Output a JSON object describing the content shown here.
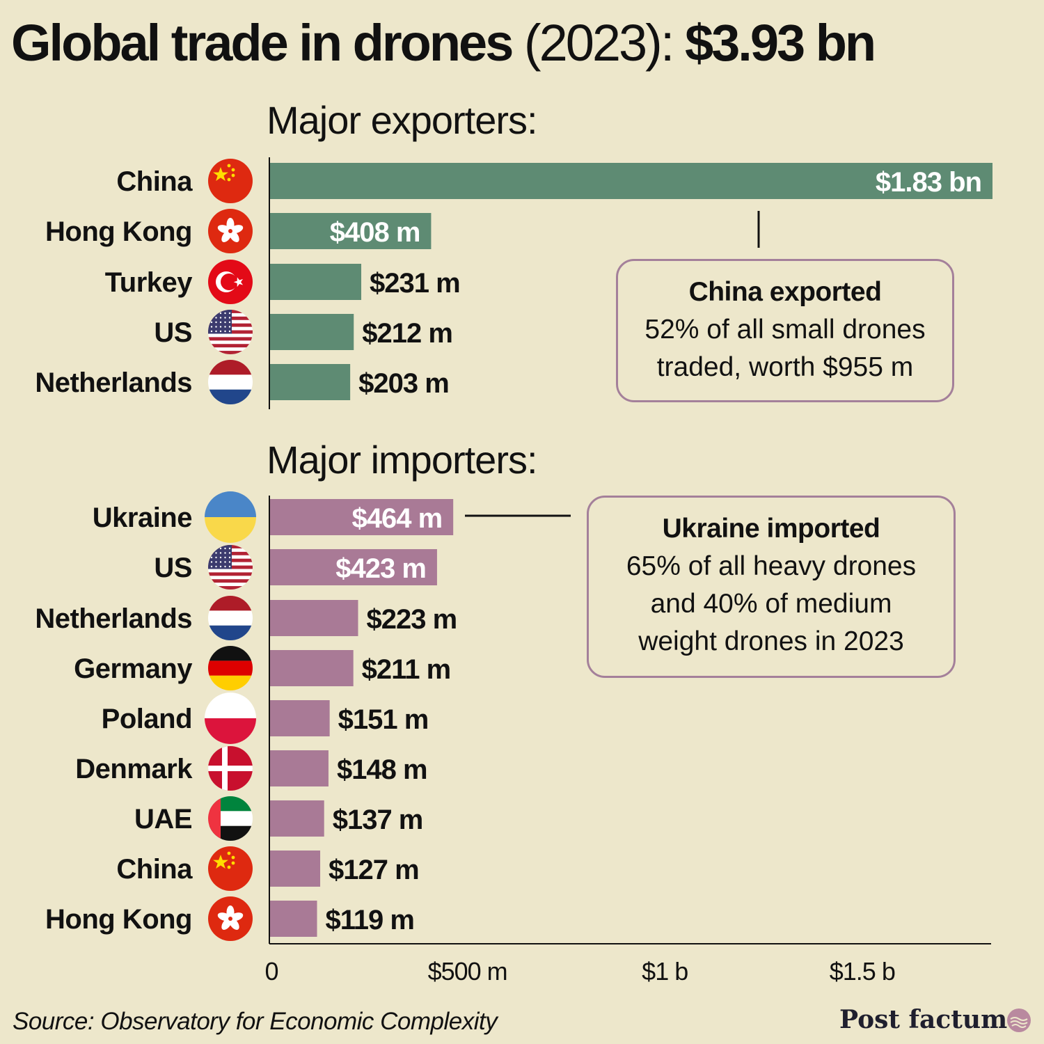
{
  "title": {
    "main": "Global trade in drones",
    "year": "(2023):",
    "total": "$3.93 bn"
  },
  "exporters_label": "Major exporters:",
  "importers_label": "Major importers:",
  "callout_exports": {
    "head": "China exported",
    "line1": "52% of all small drones",
    "line2": "traded, worth $955 m"
  },
  "callout_imports": {
    "head": "Ukraine imported",
    "line1": "65% of all heavy drones",
    "line2": "and 40% of medium",
    "line3": "weight drones in 2023"
  },
  "source": "Source: Observatory for Economic Complexity",
  "brand": "Post factum",
  "colors": {
    "background": "#ede7cb",
    "exports": "#5e8b73",
    "imports": "#a97a96",
    "callout_border": "#a4809a"
  },
  "chart_data": [
    {
      "type": "bar",
      "orientation": "horizontal",
      "title": "Major exporters:",
      "unit": "USD millions",
      "categories": [
        "China",
        "Hong Kong",
        "Turkey",
        "US",
        "Netherlands"
      ],
      "values": [
        1830,
        408,
        231,
        212,
        203
      ],
      "labels": [
        "$1.83 bn",
        "$408 m",
        "$231 m",
        "$212 m",
        "$203 m"
      ],
      "flags": [
        "china-flag",
        "hong-kong-flag",
        "turkey-flag",
        "us-flag",
        "netherlands-flag"
      ],
      "xlim": [
        0,
        1830
      ]
    },
    {
      "type": "bar",
      "orientation": "horizontal",
      "title": "Major importers:",
      "unit": "USD millions",
      "categories": [
        "Ukraine",
        "US",
        "Netherlands",
        "Germany",
        "Poland",
        "Denmark",
        "UAE",
        "China",
        "Hong Kong"
      ],
      "values": [
        464,
        423,
        223,
        211,
        151,
        148,
        137,
        127,
        119
      ],
      "labels": [
        "$464 m",
        "$423 m",
        "$223 m",
        "$211 m",
        "$151 m",
        "$148 m",
        "$137 m",
        "$127 m",
        "$119 m"
      ],
      "flags": [
        "ukraine-flag",
        "us-flag",
        "netherlands-flag",
        "germany-flag",
        "poland-flag",
        "denmark-flag",
        "uae-flag",
        "china-flag",
        "hong-kong-flag"
      ],
      "xlim": [
        0,
        1830
      ],
      "xticks": [
        0,
        500,
        1000,
        1500
      ],
      "xtick_labels": [
        "0",
        "$500 m",
        "$1 b",
        "$1.5 b"
      ]
    }
  ]
}
